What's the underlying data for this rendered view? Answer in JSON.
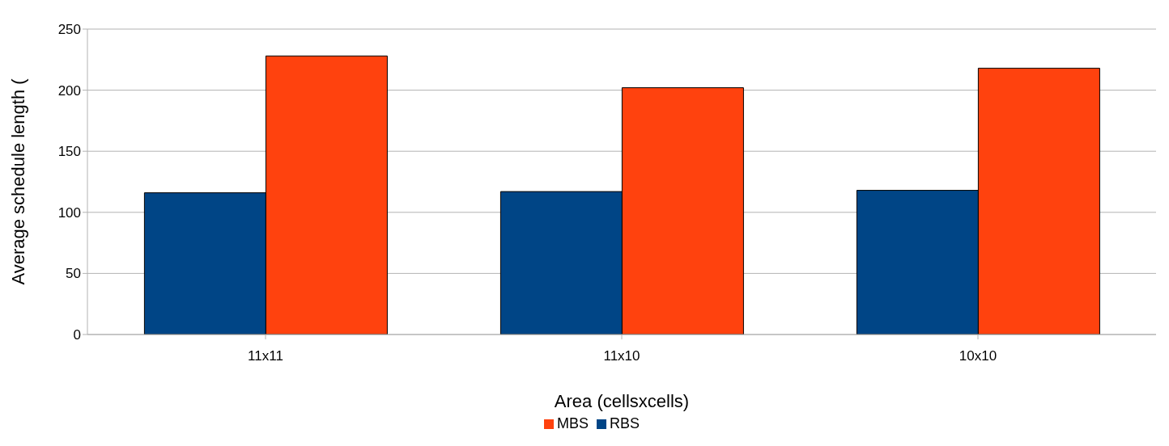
{
  "chart_data": {
    "type": "bar",
    "xlabel": "Area (cellsxcells)",
    "ylabel": "Average schedule length (",
    "categories": [
      "11x11",
      "11x10",
      "10x10"
    ],
    "series": [
      {
        "name": "RBS",
        "color": "#004586",
        "values": [
          116,
          117,
          118
        ]
      },
      {
        "name": "MBS",
        "color": "#ff420e",
        "values": [
          228,
          202,
          218
        ]
      }
    ],
    "ylim": [
      0,
      250
    ],
    "yticks": [
      0,
      50,
      100,
      150,
      200,
      250
    ],
    "grid": "y",
    "legend": "bottom"
  }
}
